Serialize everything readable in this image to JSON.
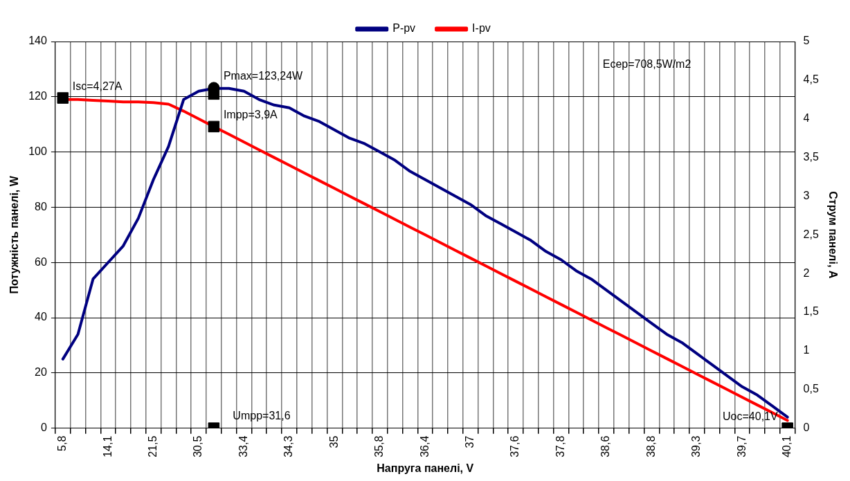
{
  "chart_data": {
    "type": "line",
    "xlabel": "Напруга панелі, V",
    "ylabel": "Потужність панелі, W",
    "y2label": "Струм панелі, A",
    "categories": [
      "5,8",
      null,
      null,
      "14,1",
      null,
      null,
      "21,5",
      null,
      null,
      "30,5",
      null,
      null,
      "33,4",
      null,
      null,
      "34,3",
      null,
      null,
      "35",
      null,
      null,
      "35,8",
      null,
      null,
      "36,4",
      null,
      null,
      "37",
      null,
      null,
      "37,6",
      null,
      null,
      "37,8",
      null,
      null,
      "38,6",
      null,
      null,
      "38,8",
      null,
      null,
      "39,3",
      null,
      null,
      "39,7",
      null,
      null,
      "40,1"
    ],
    "ylim": [
      0,
      140
    ],
    "yticks": [
      0,
      20,
      40,
      60,
      80,
      100,
      120,
      140
    ],
    "y2lim": [
      0,
      5
    ],
    "y2ticks": [
      0,
      {
        "value": 0.5,
        "label": "0,5"
      },
      1,
      {
        "value": 1.5,
        "label": "1,5"
      },
      2,
      {
        "value": 2.5,
        "label": "2,5"
      },
      3,
      {
        "value": 3.5,
        "label": "3,5"
      },
      4,
      {
        "value": 4.5,
        "label": "4,5"
      },
      5
    ],
    "grid": true,
    "legend": "top",
    "marker": "none",
    "annotations": [
      "Ecep=708,5W/m2",
      "Umpp=31,6",
      {
        "text": "Uoc=40,1V",
        "x": "40,1",
        "y": 0
      }
    ],
    "series": [
      {
        "name": "P-pv",
        "color": "#000080",
        "values": [
          25,
          34,
          54,
          60,
          66,
          76,
          90,
          102,
          119,
          122,
          123,
          123,
          122,
          119,
          117,
          116,
          113,
          111,
          108,
          105,
          103,
          100,
          97,
          93,
          90,
          87,
          84,
          81,
          77,
          74,
          71,
          68,
          64,
          61,
          57,
          54,
          50,
          46,
          42,
          38,
          34,
          31,
          27,
          23,
          19,
          15,
          12,
          8,
          4
        ]
      },
      {
        "name": "I-pv",
        "color": "#ff0000",
        "axis": "y2",
        "values": [
          4.25,
          4.25,
          4.24,
          4.23,
          4.22,
          4.22,
          4.21,
          4.19,
          4.1,
          4.0,
          3.9,
          3.8,
          3.7,
          3.6,
          3.5,
          3.4,
          3.3,
          3.2,
          3.1,
          3.0,
          2.9,
          2.8,
          2.7,
          2.6,
          2.5,
          2.4,
          2.3,
          2.2,
          2.1,
          2.0,
          1.9,
          1.8,
          1.7,
          1.6,
          1.5,
          1.4,
          1.3,
          1.2,
          1.1,
          1.0,
          0.9,
          0.8,
          0.7,
          0.6,
          0.5,
          0.4,
          0.3,
          0.2,
          0.1
        ]
      },
      {
        "type": "scatter",
        "color": "#000000",
        "marker": "circle",
        "values": [
          null,
          null,
          null,
          null,
          null,
          null,
          null,
          null,
          null,
          null,
          123.24,
          null,
          null,
          null,
          null,
          null,
          null,
          null,
          null,
          null,
          null,
          null,
          null,
          null,
          null,
          null,
          null,
          null,
          null,
          null,
          null,
          null,
          null,
          null,
          null,
          null,
          null,
          null,
          null,
          null,
          null,
          null,
          null,
          null,
          null,
          null,
          null,
          null,
          null
        ],
        "value_labels": [
          null,
          null,
          null,
          null,
          null,
          null,
          null,
          null,
          null,
          null,
          "Pmax=123,24W",
          null,
          null,
          null,
          null,
          null,
          null,
          null,
          null,
          null,
          null,
          null,
          null,
          null,
          null,
          null,
          null,
          null,
          null,
          null,
          null,
          null,
          null,
          null,
          null,
          null,
          null,
          null,
          null,
          null,
          null,
          null,
          null,
          null,
          null,
          null,
          null,
          null,
          null
        ]
      },
      {
        "type": "scatter",
        "color": "#000000",
        "marker": "square",
        "values": [
          null,
          null,
          null,
          null,
          null,
          null,
          null,
          null,
          null,
          null,
          121,
          null,
          null,
          null,
          null,
          null,
          null,
          null,
          null,
          null,
          null,
          null,
          null,
          null,
          null,
          null,
          null,
          null,
          null,
          null,
          null,
          null,
          null,
          null,
          null,
          null,
          null,
          null,
          null,
          null,
          null,
          null,
          null,
          null,
          null,
          null,
          null,
          null,
          null
        ]
      },
      {
        "type": "scatter",
        "color": "#000000",
        "marker": "square",
        "axis": "y2",
        "values": [
          4.27,
          null,
          null,
          null,
          null,
          null,
          null,
          null,
          null,
          null,
          3.9,
          null,
          null,
          null,
          null,
          null,
          null,
          null,
          null,
          null,
          null,
          null,
          null,
          null,
          null,
          null,
          null,
          null,
          null,
          null,
          null,
          null,
          null,
          null,
          null,
          null,
          null,
          null,
          null,
          null,
          null,
          null,
          null,
          null,
          null,
          null,
          null,
          null,
          0
        ],
        "value_labels": [
          "Isc=4,27A",
          null,
          null,
          null,
          null,
          null,
          null,
          null,
          null,
          null,
          "Impp=3,9A",
          null,
          null,
          null,
          null,
          null,
          null,
          null,
          null,
          null,
          null,
          null,
          null,
          null,
          null,
          null,
          null,
          null,
          null,
          null,
          null,
          null,
          null,
          null,
          null,
          null,
          null,
          null,
          null,
          null,
          null,
          null,
          null,
          null,
          null,
          null,
          null,
          null,
          null
        ]
      },
      {
        "type": "scatter",
        "color": "#000000",
        "marker": "square",
        "values": [
          null,
          null,
          null,
          null,
          null,
          null,
          null,
          null,
          null,
          null,
          0,
          null,
          null,
          null,
          null,
          null,
          null,
          null,
          null,
          null,
          null,
          null,
          null,
          null,
          null,
          null,
          null,
          null,
          null,
          null,
          null,
          null,
          null,
          null,
          null,
          null,
          null,
          null,
          null,
          null,
          null,
          null,
          null,
          null,
          null,
          null,
          null,
          null,
          null
        ]
      }
    ]
  }
}
